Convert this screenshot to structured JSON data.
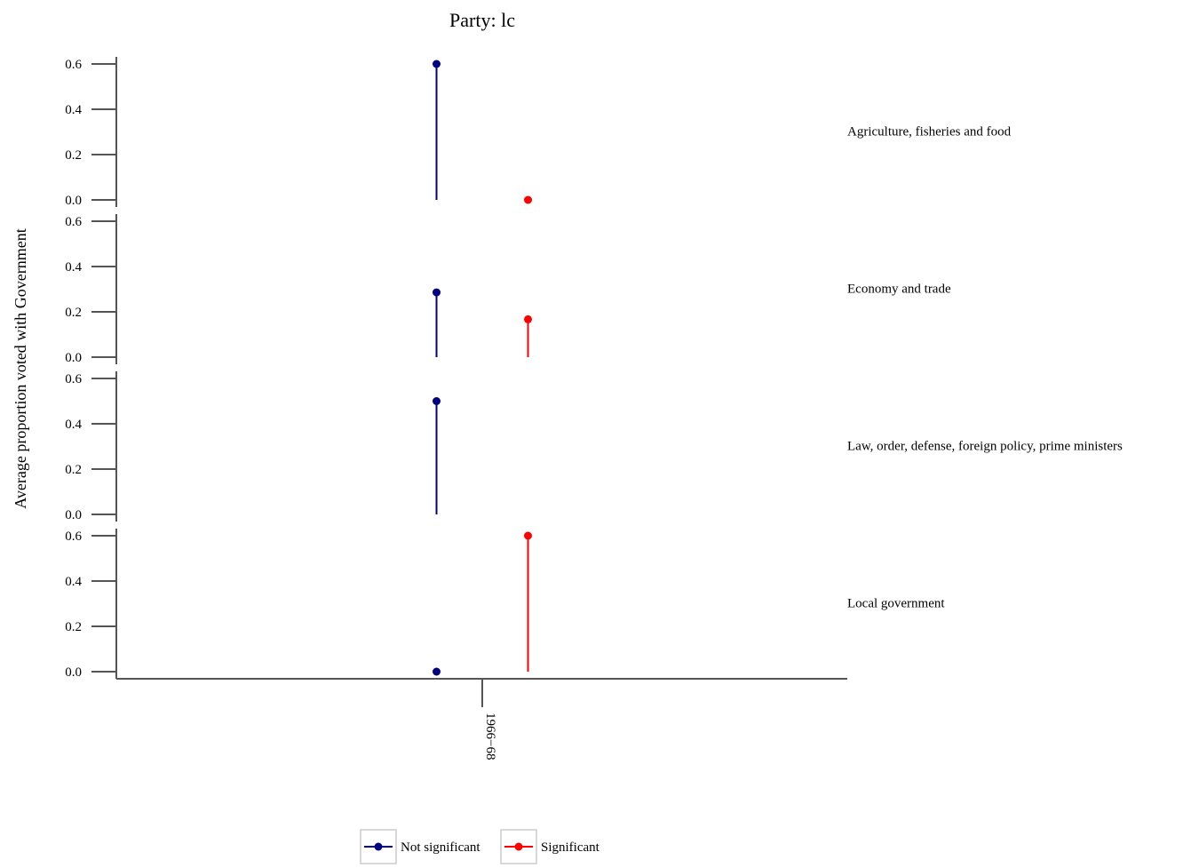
{
  "chart_data": {
    "type": "lollipop",
    "title": "Party: lc",
    "ylabel": "Average proportion voted with Government",
    "xlabel": "",
    "x_categories": [
      "1966−68"
    ],
    "ylim": [
      0,
      0.6
    ],
    "y_ticks": [
      "0.0",
      "0.2",
      "0.4",
      "0.6"
    ],
    "series_colors": {
      "Not significant": "#000080",
      "Significant": "#ff0000"
    },
    "legend": {
      "position": "bottom",
      "entries": [
        "Not significant",
        "Significant"
      ]
    },
    "facets": [
      {
        "label": "Agriculture, fisheries and food",
        "points": [
          {
            "series": "Not significant",
            "x": "1966−68",
            "y": 0.6
          },
          {
            "series": "Significant",
            "x": "1966−68",
            "y": 0.0
          }
        ]
      },
      {
        "label": "Economy and trade",
        "points": [
          {
            "series": "Not significant",
            "x": "1966−68",
            "y": 0.286
          },
          {
            "series": "Significant",
            "x": "1966−68",
            "y": 0.167
          }
        ]
      },
      {
        "label": "Law, order, defense, foreign policy, prime ministers",
        "points": [
          {
            "series": "Not significant",
            "x": "1966−68",
            "y": 0.5
          }
        ]
      },
      {
        "label": "Local government",
        "points": [
          {
            "series": "Not significant",
            "x": "1966−68",
            "y": 0.0
          },
          {
            "series": "Significant",
            "x": "1966−68",
            "y": 0.6
          }
        ]
      }
    ]
  }
}
